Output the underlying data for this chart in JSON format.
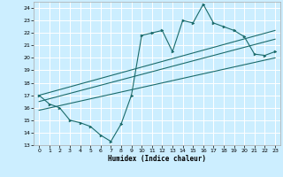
{
  "title": "",
  "xlabel": "Humidex (Indice chaleur)",
  "bg_color": "#cceeff",
  "grid_color": "#ffffff",
  "line_color": "#1a6b6b",
  "xlim": [
    -0.5,
    23.5
  ],
  "ylim": [
    13,
    24.5
  ],
  "yticks": [
    13,
    14,
    15,
    16,
    17,
    18,
    19,
    20,
    21,
    22,
    23,
    24
  ],
  "xticks": [
    0,
    1,
    2,
    3,
    4,
    5,
    6,
    7,
    8,
    9,
    10,
    11,
    12,
    13,
    14,
    15,
    16,
    17,
    18,
    19,
    20,
    21,
    22,
    23
  ],
  "main_x": [
    0,
    1,
    2,
    3,
    4,
    5,
    6,
    7,
    8,
    9,
    10,
    11,
    12,
    13,
    14,
    15,
    16,
    17,
    18,
    19,
    20,
    21,
    22,
    23
  ],
  "main_y": [
    17.0,
    16.3,
    16.0,
    15.0,
    14.8,
    14.5,
    13.8,
    13.3,
    14.7,
    17.0,
    21.8,
    22.0,
    22.2,
    20.5,
    23.0,
    22.8,
    24.3,
    22.8,
    22.5,
    22.2,
    21.7,
    20.3,
    20.2,
    20.5
  ],
  "line1_x": [
    0,
    23
  ],
  "line1_y": [
    17.0,
    22.2
  ],
  "line2_x": [
    0,
    23
  ],
  "line2_y": [
    16.5,
    21.5
  ],
  "line3_x": [
    0,
    23
  ],
  "line3_y": [
    15.8,
    20.0
  ]
}
